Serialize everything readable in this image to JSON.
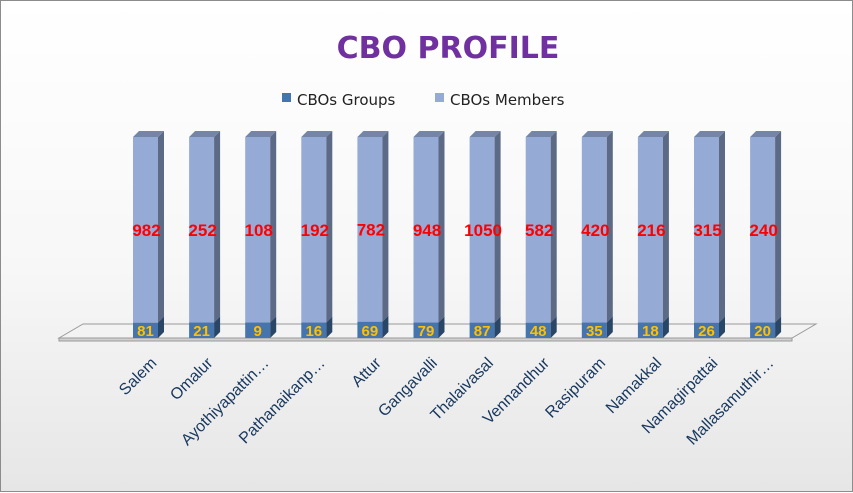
{
  "chart_data": {
    "type": "bar",
    "stacked": true,
    "three_d": true,
    "title": "CBO PROFILE",
    "legend_position": "top",
    "grid": false,
    "categories": [
      "Salem",
      "Omalur",
      "Ayothiyapattin…",
      "Pathanaikanp…",
      "Attur",
      "Gangavalli",
      "Thalaivasal",
      "Vennandhur",
      "Rasipuram",
      "Namakkal",
      "Namagirpattai",
      "Mallasamuthir…"
    ],
    "series": [
      {
        "name": "CBOs Groups",
        "values": [
          81,
          21,
          9,
          16,
          69,
          79,
          87,
          48,
          35,
          18,
          26,
          20
        ]
      },
      {
        "name": "CBOs Members",
        "values": [
          982,
          252,
          108,
          192,
          782,
          948,
          1050,
          582,
          420,
          216,
          315,
          240
        ]
      }
    ],
    "colors": {
      "groups": "#4674ac",
      "members": "#95abd6",
      "members_value_label": "#ff0000",
      "groups_value_label": "#ffc000",
      "title": "#7030a0"
    }
  }
}
